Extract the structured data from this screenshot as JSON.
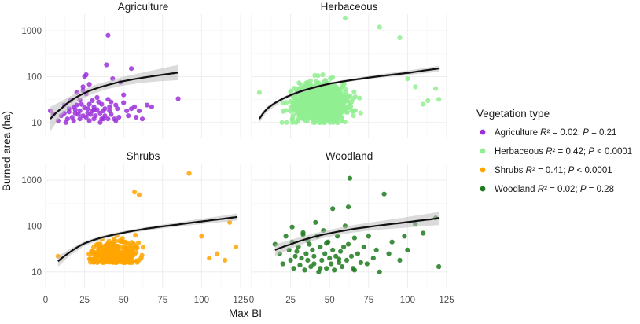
{
  "chart_data": {
    "type": "scatter",
    "title": "",
    "xlabel": "Max BI",
    "ylabel": "Burned area (ha)",
    "y_scale": "log10",
    "x_ticks": [
      0,
      25,
      50,
      75,
      100,
      125
    ],
    "y_ticks": [
      10,
      100,
      1000
    ],
    "xlim": [
      0,
      125
    ],
    "ylim": [
      4.5,
      2300
    ],
    "legend": {
      "title": "Vegetation type",
      "position": "right",
      "entries": [
        {
          "series": "Agriculture",
          "name": "Agriculture",
          "r2": "0.02",
          "p": "= 0.21",
          "color": "#9b30d9"
        },
        {
          "series": "Herbaceous",
          "name": "Herbaceous",
          "r2": "0.42",
          "p": "< 0.0001",
          "color": "#90ee90"
        },
        {
          "series": "Shrubs",
          "name": "Shrubs",
          "r2": "0.41",
          "p": "< 0.0001",
          "color": "#ffa500"
        },
        {
          "series": "Woodland",
          "name": "Woodland",
          "r2": "0.02",
          "p": "= 0.28",
          "color": "#1e7b1e"
        }
      ]
    },
    "panels": [
      {
        "name": "Agriculture",
        "title": "Agriculture",
        "color": "#9b30d9",
        "trend": {
          "x": [
            3,
            10,
            20,
            30,
            40,
            50,
            60,
            70,
            85
          ],
          "y": [
            12,
            20,
            36,
            52,
            66,
            80,
            92,
            104,
            122
          ]
        },
        "ribbon": {
          "x": [
            3,
            10,
            20,
            30,
            40,
            50,
            60,
            70,
            85
          ],
          "lo": [
            6.5,
            14,
            28,
            42,
            54,
            64,
            72,
            78,
            84
          ],
          "hi": [
            22,
            29,
            45,
            63,
            80,
            100,
            118,
            140,
            180
          ]
        },
        "points": {
          "x": [
            3,
            5,
            8,
            10,
            12,
            12,
            13,
            14,
            15,
            15,
            16,
            17,
            18,
            18,
            19,
            20,
            20,
            21,
            22,
            22,
            22,
            23,
            24,
            24,
            25,
            25,
            26,
            26,
            27,
            27,
            28,
            28,
            28,
            29,
            30,
            30,
            31,
            31,
            32,
            33,
            33,
            34,
            35,
            35,
            36,
            36,
            37,
            38,
            38,
            39,
            40,
            40,
            41,
            41,
            42,
            42,
            43,
            44,
            45,
            45,
            46,
            47,
            48,
            50,
            50,
            52,
            53,
            55,
            55,
            57,
            58,
            60,
            62,
            65,
            68,
            85,
            24,
            26,
            31,
            40,
            19,
            37
          ],
          "y": [
            18,
            15,
            11,
            14,
            16,
            24,
            10,
            12,
            20,
            17,
            30,
            13,
            11,
            22,
            19,
            24,
            45,
            15,
            31,
            12,
            18,
            25,
            50,
            14,
            100,
            21,
            110,
            13,
            20,
            16,
            11,
            25,
            68,
            15,
            30,
            18,
            22,
            12,
            14,
            35,
            19,
            28,
            10,
            16,
            12,
            25,
            18,
            14,
            20,
            180,
            32,
            12,
            18,
            22,
            28,
            15,
            90,
            12,
            24,
            11,
            20,
            13,
            75,
            40,
            27,
            18,
            14,
            150,
            20,
            22,
            13,
            18,
            12,
            24,
            22,
            33,
            60,
            42,
            19,
            800,
            16,
            12
          ]
        }
      },
      {
        "name": "Herbaceous",
        "title": "Herbaceous",
        "color": "#90ee90",
        "trend": {
          "x": [
            5,
            10,
            20,
            30,
            40,
            50,
            60,
            70,
            80,
            90,
            100,
            110,
            120
          ],
          "y": [
            12,
            20,
            33,
            46,
            58,
            70,
            80,
            90,
            100,
            110,
            120,
            135,
            150
          ]
        },
        "ribbon": {
          "x": [
            5,
            10,
            20,
            30,
            40,
            50,
            60,
            70,
            80,
            90,
            100,
            110,
            120
          ],
          "lo": [
            10,
            17,
            30,
            42,
            54,
            65,
            75,
            84,
            92,
            100,
            108,
            118,
            128
          ],
          "hi": [
            14,
            23,
            36,
            50,
            62,
            75,
            86,
            97,
            110,
            122,
            135,
            152,
            172
          ]
        }
      },
      {
        "name": "Shrubs",
        "title": "Shrubs",
        "color": "#ffa500",
        "trend": {
          "x": [
            8,
            15,
            25,
            35,
            45,
            55,
            65,
            75,
            85,
            95,
            105,
            115,
            123
          ],
          "y": [
            17,
            26,
            42,
            55,
            66,
            77,
            88,
            98,
            108,
            120,
            132,
            145,
            158
          ]
        },
        "ribbon": {
          "x": [
            8,
            15,
            25,
            35,
            45,
            55,
            65,
            75,
            85,
            95,
            105,
            115,
            123
          ],
          "lo": [
            13,
            22,
            37,
            50,
            61,
            71,
            80,
            89,
            97,
            106,
            115,
            124,
            132
          ],
          "hi": [
            22,
            31,
            47,
            60,
            72,
            84,
            96,
            108,
            121,
            136,
            152,
            170,
            188
          ]
        }
      },
      {
        "name": "Woodland",
        "title": "Woodland",
        "color": "#1e7b1e",
        "trend": {
          "x": [
            15,
            25,
            35,
            45,
            55,
            65,
            75,
            85,
            95,
            105,
            115,
            120
          ],
          "y": [
            30,
            40,
            52,
            64,
            75,
            86,
            96,
            106,
            116,
            128,
            140,
            150
          ]
        },
        "ribbon": {
          "x": [
            15,
            25,
            35,
            45,
            55,
            65,
            75,
            85,
            95,
            105,
            115,
            120
          ],
          "lo": [
            22,
            32,
            43,
            54,
            63,
            72,
            79,
            85,
            90,
            96,
            102,
            105
          ],
          "hi": [
            40,
            50,
            62,
            76,
            90,
            104,
            118,
            132,
            148,
            168,
            190,
            205
          ]
        },
        "points": {
          "x": [
            15,
            18,
            20,
            22,
            24,
            25,
            26,
            27,
            28,
            29,
            30,
            31,
            32,
            33,
            34,
            35,
            36,
            37,
            38,
            39,
            40,
            40,
            41,
            42,
            43,
            44,
            45,
            46,
            47,
            48,
            49,
            50,
            51,
            52,
            53,
            54,
            55,
            56,
            57,
            58,
            59,
            60,
            61,
            62,
            63,
            64,
            65,
            66,
            68,
            70,
            72,
            75,
            78,
            80,
            82,
            85,
            88,
            90,
            95,
            98,
            100,
            105,
            110,
            118,
            120,
            36,
            44,
            52,
            62,
            74,
            26,
            48,
            56,
            33,
            66
          ],
          "y": [
            40,
            25,
            15,
            60,
            30,
            18,
            45,
            12,
            22,
            28,
            35,
            14,
            20,
            65,
            11,
            25,
            18,
            40,
            13,
            30,
            22,
            15,
            120,
            60,
            10,
            35,
            18,
            80,
            25,
            12,
            45,
            20,
            15,
            30,
            11,
            22,
            60,
            16,
            28,
            13,
            35,
            100,
            18,
            40,
            1100,
            22,
            12,
            55,
            25,
            16,
            35,
            60,
            20,
            30,
            10,
            500,
            25,
            45,
            18,
            60,
            30,
            110,
            70,
            150,
            13,
            48,
            12,
            240,
            260,
            15,
            95,
            42,
            19,
            72,
            11
          ]
        }
      }
    ]
  }
}
